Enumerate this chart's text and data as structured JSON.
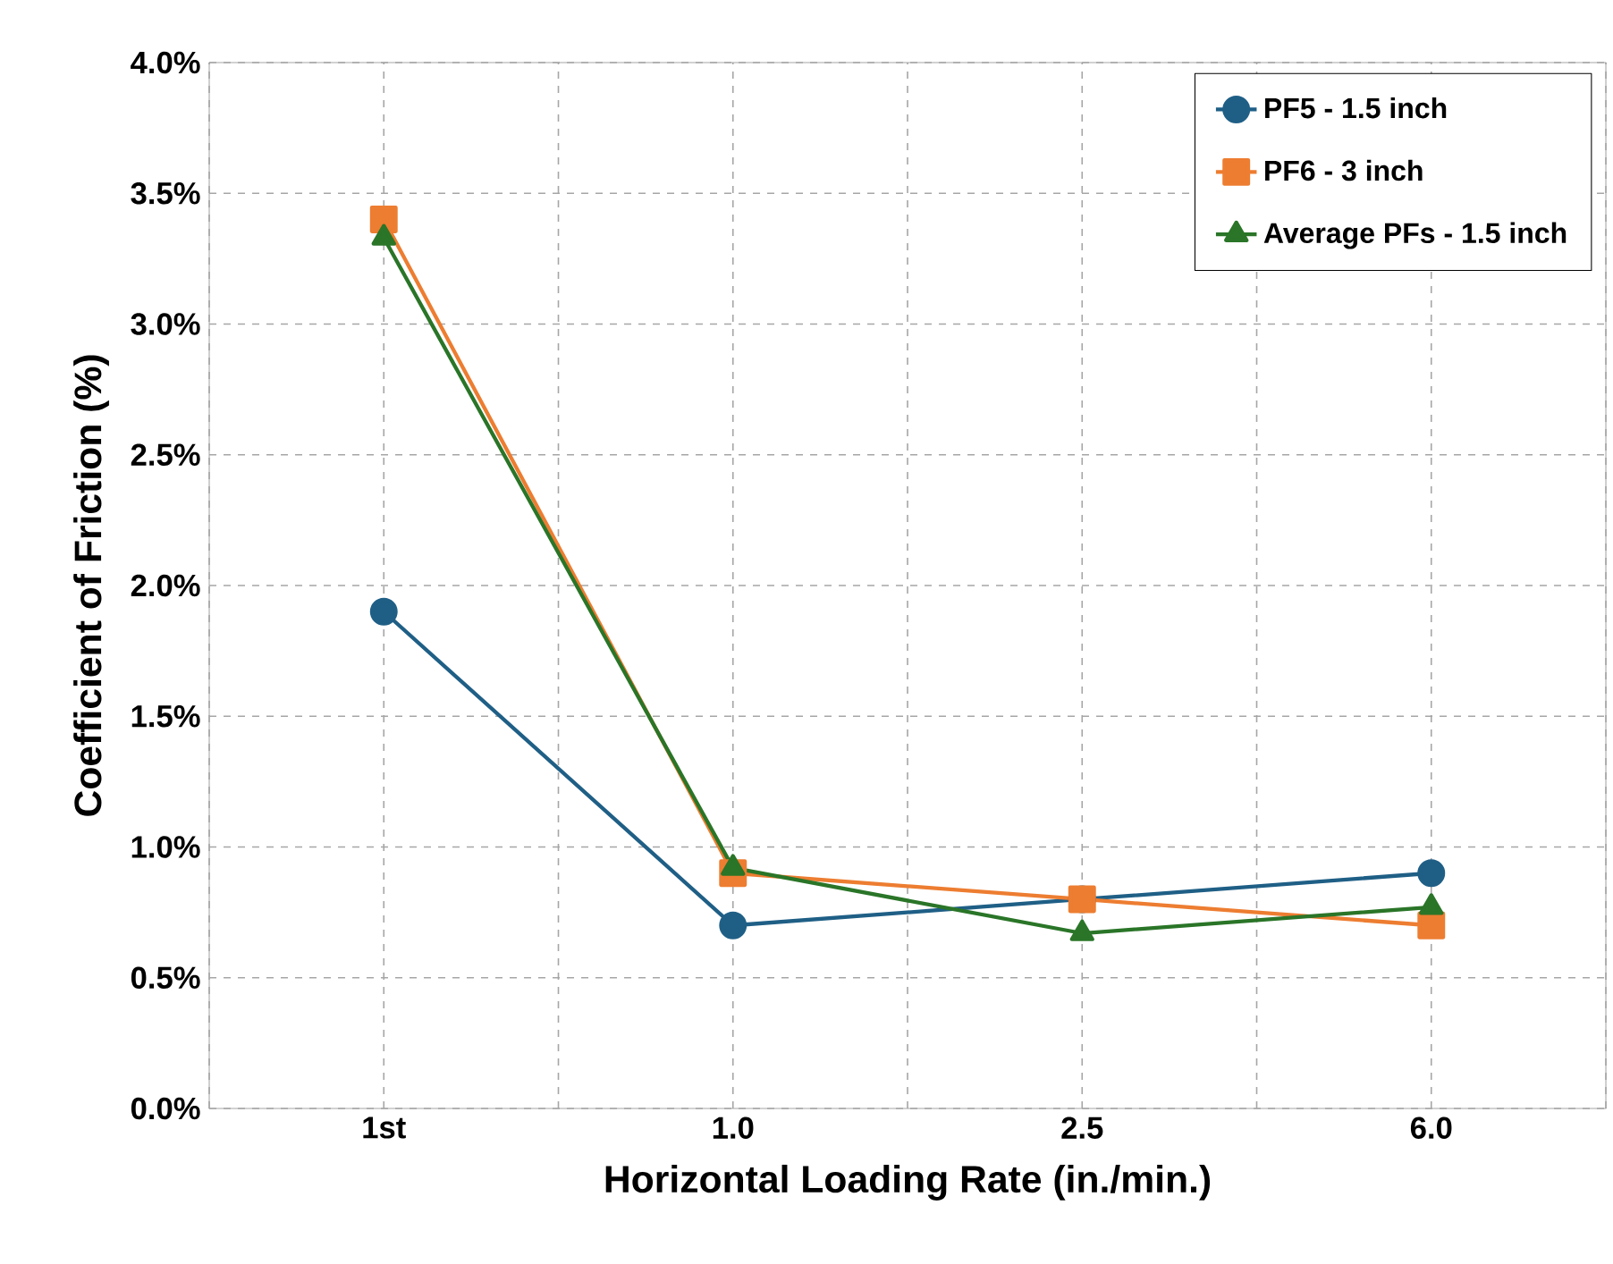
{
  "chart_data": {
    "type": "line",
    "xlabel": "Horizontal Loading Rate (in./min.)",
    "ylabel": "Coefficient of Friction (%)",
    "categories": [
      "1st",
      "1.0",
      "2.5",
      "6.0"
    ],
    "series": [
      {
        "name": "PF5 - 1.5 inch",
        "color": "#1f5f86",
        "marker": "circle",
        "values": [
          1.9,
          0.7,
          0.8,
          0.9
        ]
      },
      {
        "name": "PF6 - 3 inch",
        "color": "#ed7d31",
        "marker": "square",
        "values": [
          3.4,
          0.9,
          0.8,
          0.7
        ]
      },
      {
        "name": "Average PFs - 1.5 inch",
        "color": "#2a7528",
        "marker": "triangle",
        "values": [
          3.33,
          0.92,
          0.67,
          0.77
        ]
      }
    ],
    "ylim": [
      0,
      4
    ],
    "yticks": [
      {
        "value": 0,
        "label": "0.0%"
      },
      {
        "value": 0.5,
        "label": "0.5%"
      },
      {
        "value": 1,
        "label": "1.0%"
      },
      {
        "value": 1.5,
        "label": "1.5%"
      },
      {
        "value": 2,
        "label": "2.0%"
      },
      {
        "value": 2.5,
        "label": "2.5%"
      },
      {
        "value": 3,
        "label": "3.0%"
      },
      {
        "value": 3.5,
        "label": "3.5%"
      },
      {
        "value": 4,
        "label": "4.0%"
      }
    ],
    "grid": true,
    "legend": "top right",
    "line_style": "solid"
  }
}
